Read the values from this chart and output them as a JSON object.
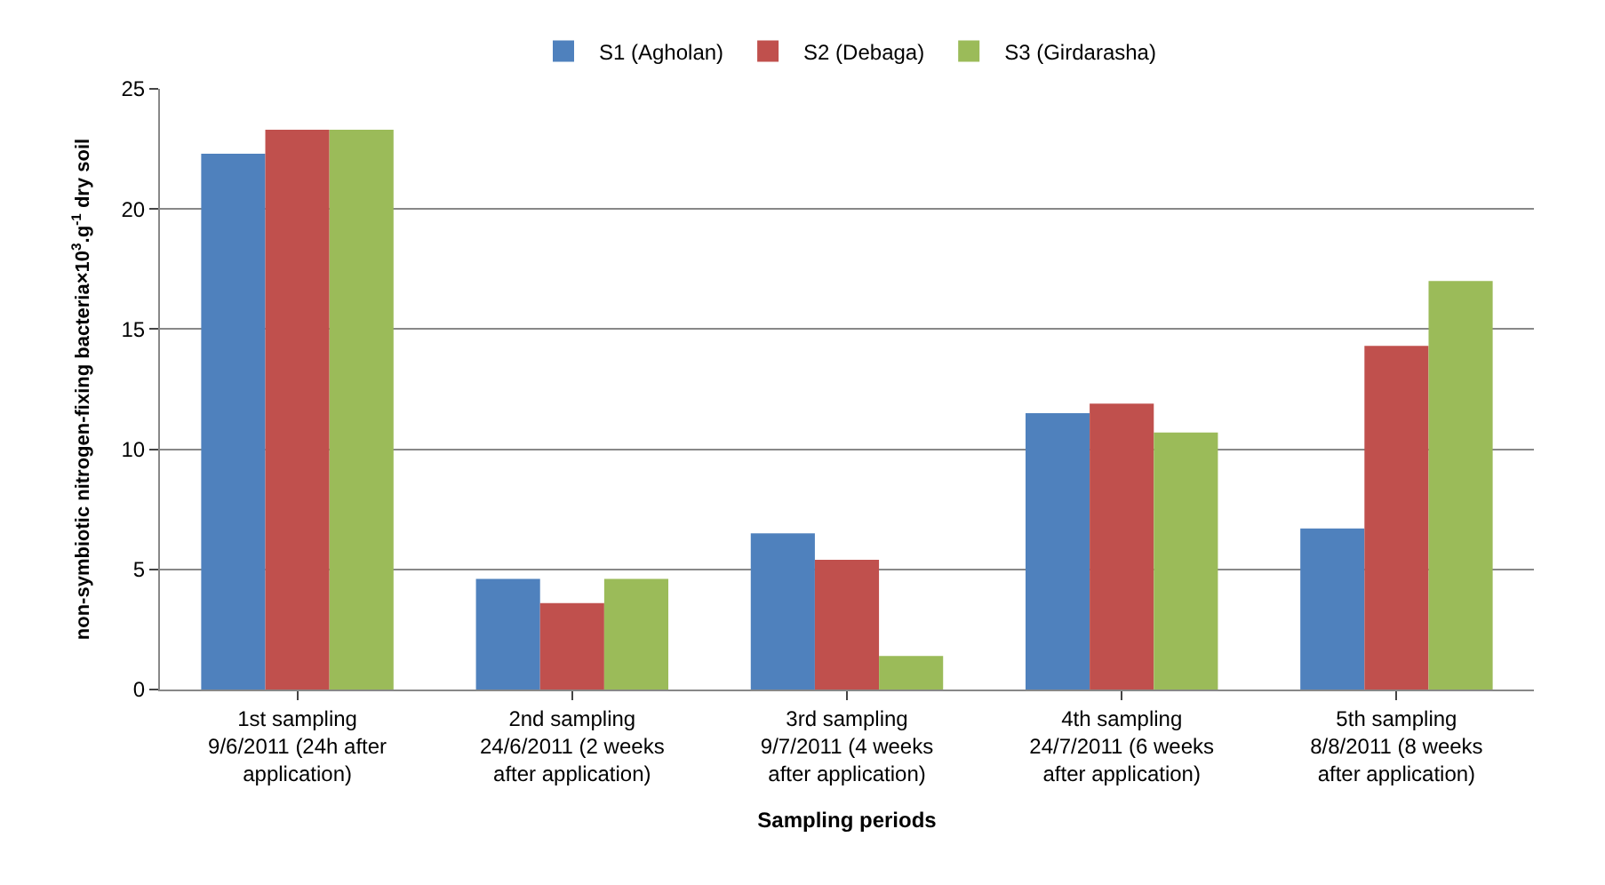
{
  "chart_data": {
    "type": "bar",
    "categories": [
      "1st sampling\n9/6/2011 (24h after\napplication)",
      "2nd sampling\n24/6/2011 (2 weeks\nafter application)",
      "3rd sampling\n9/7/2011 (4 weeks\nafter application)",
      "4th sampling\n24/7/2011 (6 weeks\nafter application)",
      "5th sampling\n8/8/2011 (8 weeks\nafter application)"
    ],
    "series": [
      {
        "name": "S1 (Agholan)",
        "color": "#4f81bd",
        "values": [
          22.3,
          4.6,
          6.5,
          11.5,
          6.7
        ]
      },
      {
        "name": "S2 (Debaga)",
        "color": "#c0504d",
        "values": [
          23.3,
          3.6,
          5.4,
          11.9,
          14.3
        ]
      },
      {
        "name": "S3 (Girdarasha)",
        "color": "#9bbb59",
        "values": [
          23.3,
          4.6,
          1.4,
          10.7,
          17.0
        ]
      }
    ],
    "xlabel": "Sampling periods",
    "ylabel": "non-symbiotic nitrogen-fixing bacteria×10$^{3}$.g$^{-1}$ dry soil",
    "ylim": [
      0,
      25
    ],
    "yticks": [
      0,
      5,
      10,
      15,
      20,
      25
    ],
    "grid": "y",
    "legend": "top"
  }
}
